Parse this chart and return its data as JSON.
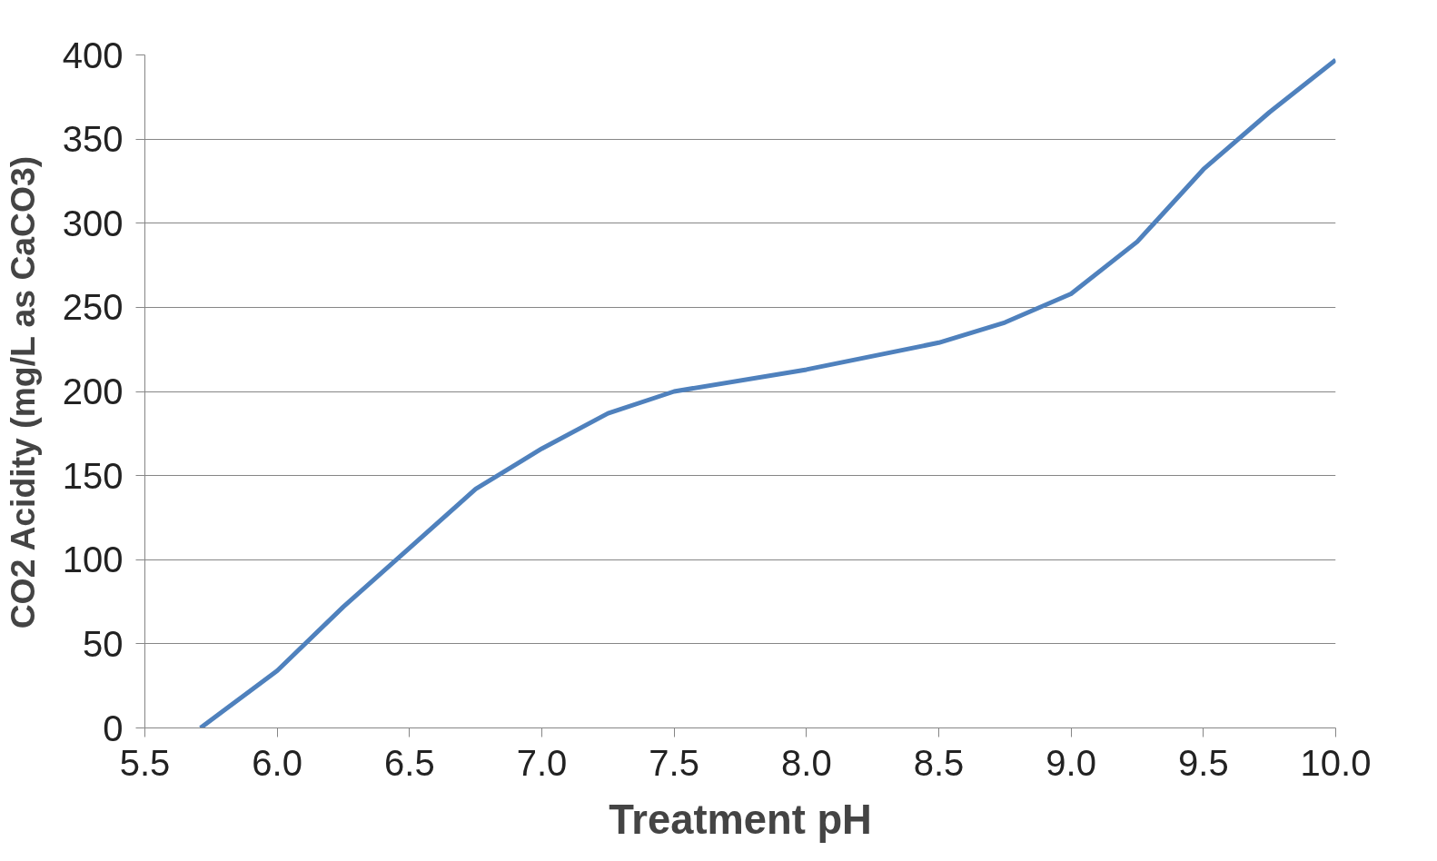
{
  "chart_data": {
    "type": "line",
    "xlabel": "Treatment pH",
    "ylabel": "CO2 Acidity (mg/L as CaCO3)",
    "x": [
      5.71,
      6.0,
      6.25,
      6.5,
      6.75,
      7.0,
      7.25,
      7.5,
      8.0,
      8.5,
      8.75,
      9.0,
      9.25,
      9.5,
      9.75,
      10.0
    ],
    "series": [
      {
        "color": "#4f81bd",
        "values": [
          0,
          34,
          72,
          107,
          142,
          166,
          187,
          200,
          213,
          229,
          241,
          258,
          289,
          332,
          366,
          397
        ]
      }
    ],
    "xlim": [
      5.5,
      10.0
    ],
    "ylim": [
      0,
      400
    ],
    "xticks": [
      5.5,
      {
        "value": 6,
        "label": "6.0"
      },
      6.5,
      {
        "value": 7,
        "label": "7.0"
      },
      7.5,
      {
        "value": 8,
        "label": "8.0"
      },
      8.5,
      {
        "value": 9,
        "label": "9.0"
      },
      9.5,
      {
        "value": 10,
        "label": "10.0"
      }
    ],
    "yticks": [
      0,
      50,
      100,
      150,
      200,
      250,
      300,
      350,
      400
    ],
    "grid": "y",
    "marker": "none",
    "line_style": "solid"
  }
}
